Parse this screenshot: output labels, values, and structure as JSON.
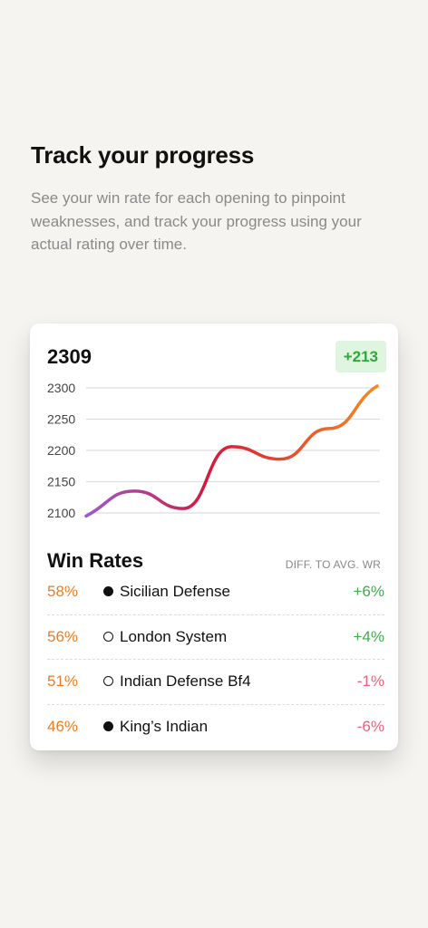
{
  "intro": {
    "title": "Track your progress",
    "description": "See your win rate for each opening to pinpoint weaknesses, and track your progress using your actual rating over time."
  },
  "card": {
    "rating": "2309",
    "rating_diff": "+213",
    "colors": {
      "line_start": "#9b59d0",
      "line_mid": "#d6183a",
      "line_end": "#f5891f",
      "positive": "#3dae4a",
      "negative": "#e8627c",
      "percent": "#f17b1e"
    }
  },
  "chart_data": {
    "type": "line",
    "yticks": [
      "2300",
      "2250",
      "2200",
      "2150",
      "2100"
    ],
    "ylim": [
      2095,
      2305
    ],
    "x": [
      0,
      1,
      2,
      3,
      4,
      5,
      6
    ],
    "series": [
      {
        "values": [
          2095,
          2135,
          2107,
          2206,
          2186,
          2235,
          2303
        ]
      }
    ],
    "grid": true
  },
  "win_rates": {
    "title": "Win Rates",
    "column_header": "DIFF. TO AVG. WR",
    "rows": [
      {
        "percent": "58%",
        "piece": "black",
        "name": "Sicilian Defense",
        "diff": "+6%",
        "sign": "pos"
      },
      {
        "percent": "56%",
        "piece": "white",
        "name": "London System",
        "diff": "+4%",
        "sign": "pos"
      },
      {
        "percent": "51%",
        "piece": "white",
        "name": "Indian Defense Bf4",
        "diff": "-1%",
        "sign": "neg"
      },
      {
        "percent": "46%",
        "piece": "black",
        "name": "King’s Indian",
        "diff": "-6%",
        "sign": "neg"
      }
    ]
  }
}
